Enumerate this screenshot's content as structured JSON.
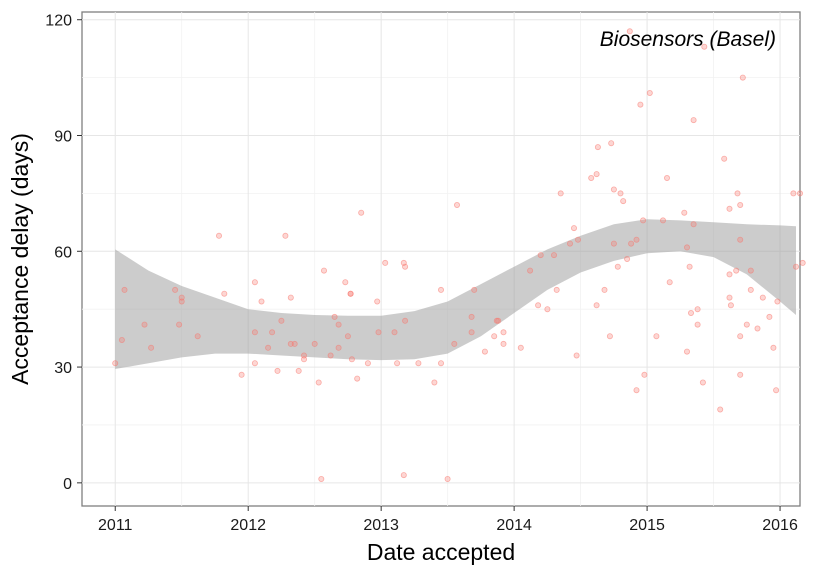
{
  "chart_data": {
    "type": "scatter",
    "title": "",
    "annotation": "Biosensors (Basel)",
    "xlabel": "Date accepted",
    "ylabel": "Acceptance delay (days)",
    "xlim": [
      2010.75,
      2016.15
    ],
    "ylim": [
      -6,
      122
    ],
    "x_ticks": [
      "2011",
      "2012",
      "2013",
      "2014",
      "2015",
      "2016"
    ],
    "y_ticks": [
      "0",
      "30",
      "60",
      "90",
      "120"
    ],
    "grid": true,
    "legend": "none",
    "point_color": "#F8766D",
    "band_color": "#999999",
    "series": [
      {
        "points": [
          [
            2011.0,
            31
          ],
          [
            2011.07,
            50
          ],
          [
            2011.05,
            37
          ],
          [
            2011.22,
            41
          ],
          [
            2011.27,
            35
          ],
          [
            2011.45,
            50
          ],
          [
            2011.5,
            48
          ],
          [
            2011.5,
            47
          ],
          [
            2011.48,
            41
          ],
          [
            2011.62,
            38
          ],
          [
            2011.78,
            64
          ],
          [
            2011.82,
            49
          ],
          [
            2011.95,
            28
          ],
          [
            2012.05,
            52
          ],
          [
            2012.05,
            39
          ],
          [
            2012.05,
            31
          ],
          [
            2012.1,
            47
          ],
          [
            2012.15,
            35
          ],
          [
            2012.18,
            39
          ],
          [
            2012.22,
            29
          ],
          [
            2012.25,
            42
          ],
          [
            2012.28,
            64
          ],
          [
            2012.32,
            48
          ],
          [
            2012.32,
            36
          ],
          [
            2012.35,
            36
          ],
          [
            2012.38,
            29
          ],
          [
            2012.42,
            33
          ],
          [
            2012.42,
            32
          ],
          [
            2012.5,
            36
          ],
          [
            2012.53,
            26
          ],
          [
            2012.55,
            1
          ],
          [
            2012.57,
            55
          ],
          [
            2012.62,
            33
          ],
          [
            2012.65,
            43
          ],
          [
            2012.68,
            41
          ],
          [
            2012.68,
            35
          ],
          [
            2012.73,
            52
          ],
          [
            2012.75,
            38
          ],
          [
            2012.77,
            49
          ],
          [
            2012.77,
            49
          ],
          [
            2012.78,
            32
          ],
          [
            2012.82,
            27
          ],
          [
            2012.85,
            70
          ],
          [
            2012.9,
            31
          ],
          [
            2012.97,
            47
          ],
          [
            2012.98,
            39
          ],
          [
            2013.03,
            57
          ],
          [
            2013.1,
            39
          ],
          [
            2013.12,
            31
          ],
          [
            2013.17,
            57
          ],
          [
            2013.17,
            2
          ],
          [
            2013.18,
            56
          ],
          [
            2013.18,
            42
          ],
          [
            2013.28,
            31
          ],
          [
            2013.4,
            26
          ],
          [
            2013.45,
            50
          ],
          [
            2013.45,
            31
          ],
          [
            2013.5,
            1
          ],
          [
            2013.55,
            36
          ],
          [
            2013.57,
            72
          ],
          [
            2013.68,
            43
          ],
          [
            2013.68,
            39
          ],
          [
            2013.7,
            50
          ],
          [
            2013.78,
            34
          ],
          [
            2013.85,
            38
          ],
          [
            2013.87,
            42
          ],
          [
            2013.88,
            42
          ],
          [
            2013.92,
            36
          ],
          [
            2013.92,
            39
          ],
          [
            2014.05,
            35
          ],
          [
            2014.12,
            55
          ],
          [
            2014.18,
            46
          ],
          [
            2014.2,
            59
          ],
          [
            2014.25,
            45
          ],
          [
            2014.3,
            59
          ],
          [
            2014.32,
            50
          ],
          [
            2014.35,
            75
          ],
          [
            2014.42,
            62
          ],
          [
            2014.45,
            66
          ],
          [
            2014.47,
            33
          ],
          [
            2014.48,
            63
          ],
          [
            2014.58,
            79
          ],
          [
            2014.62,
            80
          ],
          [
            2014.62,
            46
          ],
          [
            2014.63,
            87
          ],
          [
            2014.68,
            50
          ],
          [
            2014.72,
            38
          ],
          [
            2014.73,
            88
          ],
          [
            2014.75,
            62
          ],
          [
            2014.75,
            76
          ],
          [
            2014.78,
            56
          ],
          [
            2014.8,
            75
          ],
          [
            2014.82,
            73
          ],
          [
            2014.85,
            58
          ],
          [
            2014.87,
            117
          ],
          [
            2014.88,
            62
          ],
          [
            2014.92,
            24
          ],
          [
            2014.92,
            63
          ],
          [
            2014.95,
            98
          ],
          [
            2014.97,
            68
          ],
          [
            2014.98,
            28
          ],
          [
            2015.02,
            101
          ],
          [
            2015.07,
            38
          ],
          [
            2015.12,
            68
          ],
          [
            2015.15,
            79
          ],
          [
            2015.17,
            52
          ],
          [
            2015.28,
            70
          ],
          [
            2015.3,
            34
          ],
          [
            2015.3,
            61
          ],
          [
            2015.32,
            56
          ],
          [
            2015.33,
            44
          ],
          [
            2015.35,
            67
          ],
          [
            2015.35,
            94
          ],
          [
            2015.38,
            45
          ],
          [
            2015.38,
            41
          ],
          [
            2015.42,
            26
          ],
          [
            2015.43,
            113
          ],
          [
            2015.55,
            19
          ],
          [
            2015.58,
            84
          ],
          [
            2015.62,
            71
          ],
          [
            2015.62,
            54
          ],
          [
            2015.62,
            48
          ],
          [
            2015.63,
            46
          ],
          [
            2015.67,
            55
          ],
          [
            2015.68,
            75
          ],
          [
            2015.7,
            72
          ],
          [
            2015.7,
            63
          ],
          [
            2015.7,
            38
          ],
          [
            2015.7,
            28
          ],
          [
            2015.72,
            105
          ],
          [
            2015.75,
            41
          ],
          [
            2015.78,
            50
          ],
          [
            2015.78,
            55
          ],
          [
            2015.83,
            40
          ],
          [
            2015.87,
            48
          ],
          [
            2015.92,
            43
          ],
          [
            2015.95,
            35
          ],
          [
            2015.97,
            24
          ],
          [
            2015.98,
            47
          ],
          [
            2016.1,
            75
          ],
          [
            2016.12,
            56
          ],
          [
            2016.15,
            75
          ],
          [
            2016.17,
            57
          ]
        ]
      }
    ],
    "smooth_band": {
      "x": [
        2011.0,
        2011.25,
        2011.5,
        2011.75,
        2012.0,
        2012.25,
        2012.5,
        2012.75,
        2013.0,
        2013.25,
        2013.5,
        2013.75,
        2014.0,
        2014.25,
        2014.5,
        2014.75,
        2015.0,
        2015.25,
        2015.5,
        2015.75,
        2016.0,
        2016.12
      ],
      "upper": [
        60.5,
        55,
        51,
        48,
        45,
        44,
        43.5,
        43.3,
        43.3,
        44.5,
        47,
        51.5,
        56,
        60.5,
        64,
        67,
        68.3,
        68,
        67.5,
        67,
        66.7,
        66.5
      ],
      "lower": [
        29.5,
        31,
        32.5,
        33.5,
        33.5,
        33,
        32.5,
        32,
        31.8,
        32,
        33.5,
        38,
        44,
        50,
        54.5,
        57.5,
        59.5,
        60,
        58.5,
        54,
        47,
        43.5
      ]
    }
  }
}
